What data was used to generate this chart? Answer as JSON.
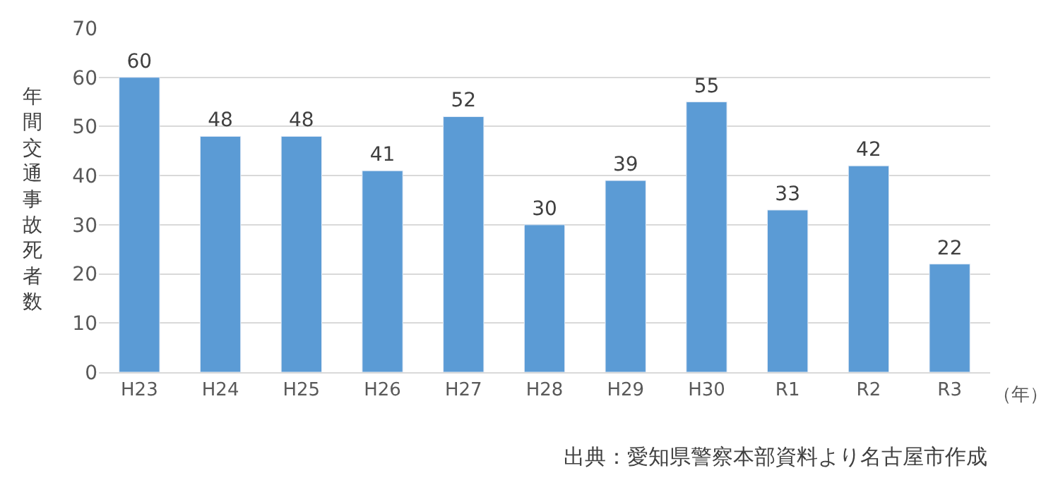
{
  "chart_data": {
    "type": "bar",
    "ylabel": "年間交通事故死者数",
    "xlabel": "（年）",
    "categories": [
      "H23",
      "H24",
      "H25",
      "H26",
      "H27",
      "H28",
      "H29",
      "H30",
      "R1",
      "R2",
      "R3"
    ],
    "values": [
      60,
      48,
      48,
      41,
      52,
      30,
      39,
      55,
      33,
      42,
      22
    ],
    "color": "#5b9bd5",
    "ylim": [
      0,
      70
    ],
    "yticks": [
      0,
      10,
      20,
      30,
      40,
      50,
      60,
      70
    ],
    "grid": "y",
    "data_labels": true,
    "legend": false,
    "annotations": [
      "出典：愛知県警察本部資料より名古屋市作成"
    ]
  }
}
